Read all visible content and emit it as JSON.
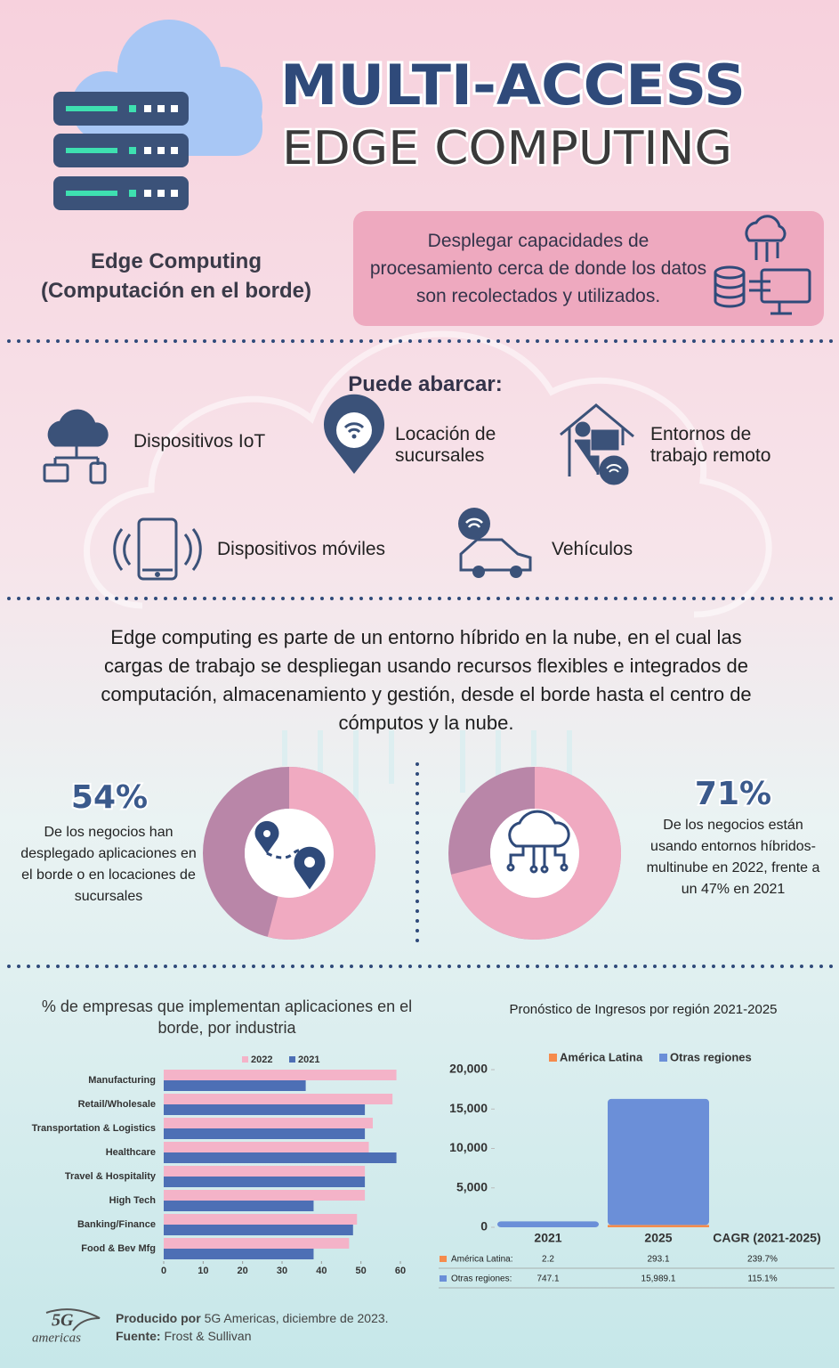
{
  "header": {
    "title": "MULTI-ACCESS",
    "subtitle": "EDGE COMPUTING"
  },
  "definition": {
    "term": [
      "Edge Computing",
      "(Computación en el borde)"
    ],
    "description": "Desplegar capacidades de procesamiento cerca de donde los datos son recolectados y utilizados."
  },
  "scope": {
    "title": "Puede abarcar:",
    "items": [
      "Dispositivos IoT",
      "Locación de sucursales",
      "Entornos de trabajo remoto",
      "Dispositivos móviles",
      "Vehículos"
    ]
  },
  "summary": "Edge computing es parte de un entorno híbrido en la nube, en el cual las cargas de trabajo se despliegan usando recursos flexibles e integrados de computación, almacenamiento y gestión, desde el borde hasta el centro de cómputos y la nube.",
  "chart_data": [
    {
      "type": "donut",
      "values": [
        54
      ],
      "value_labels": [
        "54%"
      ],
      "caption": "De los negocios han desplegado aplicaciones en el borde o en locaciones de sucursales",
      "colors": [
        "#f0aac1",
        "#b986a8"
      ]
    },
    {
      "type": "donut",
      "values": [
        71
      ],
      "value_labels": [
        "71%"
      ],
      "caption": "De los negocios están usando entornos híbridos-multinube en 2022, frente a un 47% en 2021",
      "colors": [
        "#f0aac1",
        "#b986a8"
      ]
    },
    {
      "type": "bar",
      "orientation": "horizontal",
      "title": "% de empresas que implementan aplicaciones en el borde, por industria",
      "categories": [
        "Manufacturing",
        "Retail/Wholesale",
        "Transportation & Logistics",
        "Healthcare",
        "Travel & Hospitality",
        "High Tech",
        "Banking/Finance",
        "Food & Bev Mfg"
      ],
      "series": [
        {
          "name": "2022",
          "color": "#f4b3c8",
          "values": [
            59,
            58,
            53,
            52,
            51,
            51,
            49,
            47
          ]
        },
        {
          "name": "2021",
          "color": "#4d6fb5",
          "values": [
            36,
            51,
            51,
            59,
            51,
            38,
            48,
            38
          ]
        }
      ],
      "xlim": [
        0,
        60
      ],
      "xticks": [
        0,
        10,
        20,
        30,
        40,
        50,
        60
      ],
      "legend": "top"
    },
    {
      "type": "stacked_bar",
      "title": "Pronóstico de Ingresos por región 2021-2025",
      "categories": [
        "2021",
        "2025"
      ],
      "extra_column": "CAGR (2021-2025)",
      "series": [
        {
          "name": "América Latina",
          "row_label": "América Latina:",
          "color": "#f58b4c",
          "values": [
            2.2,
            293.1
          ],
          "value_labels": [
            "2.2",
            "293.1"
          ],
          "cagr": 239.7,
          "cagr_label": "239.7%"
        },
        {
          "name": "Otras regiones",
          "row_label": "Otras regiones:",
          "color": "#6b8fd8",
          "values": [
            747.1,
            15989.1
          ],
          "value_labels": [
            "747.1",
            "15,989.1"
          ],
          "cagr": 115.1,
          "cagr_label": "115.1%"
        }
      ],
      "ylim": [
        0,
        20000
      ],
      "yticks": [
        0,
        {
          "value": 5000,
          "label": "5,000"
        },
        {
          "value": 10000,
          "label": "10,000"
        },
        {
          "value": 15000,
          "label": "15,000"
        },
        {
          "value": 20000,
          "label": "20,000"
        }
      ],
      "legend": "top"
    }
  ],
  "footer": {
    "logo": [
      "5G",
      "americas"
    ],
    "produced_label": "Producido por",
    "produced": "5G Americas, diciembre de 2023.",
    "source_label": "Fuente:",
    "source": "Frost & Sullivan"
  }
}
